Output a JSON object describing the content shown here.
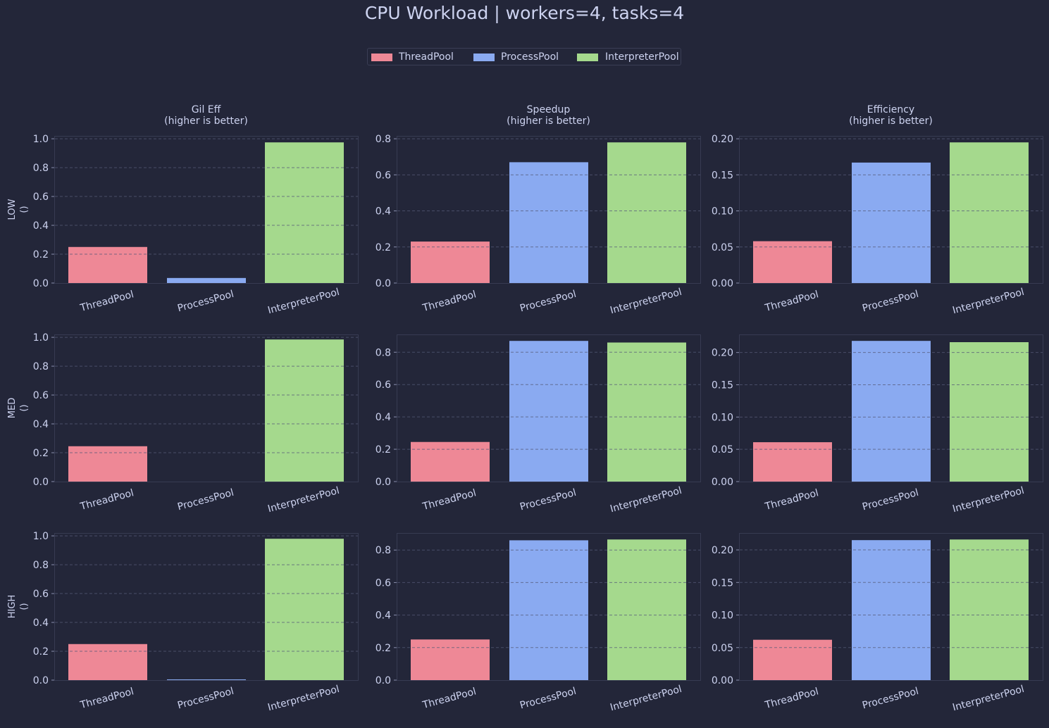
{
  "chart_data": {
    "type": "bar",
    "title": "CPU Workload | workers=4, tasks=4",
    "legend": {
      "placement": "top-center",
      "entries": [
        "ThreadPool",
        "ProcessPool",
        "InterpreterPool"
      ]
    },
    "categories": [
      "ThreadPool",
      "ProcessPool",
      "InterpreterPool"
    ],
    "colors": {
      "ThreadPool": "#ee8896",
      "ProcessPool": "#8aaaf1",
      "InterpreterPool": "#a5d98d",
      "background": "#232639",
      "text": "#cdd3f0",
      "grid": "#555a78"
    },
    "grid": "y-dashed",
    "columns": [
      {
        "title": "Gil Eff",
        "subtitle": "(higher is better)",
        "yticks": [
          "0.0",
          "0.2",
          "0.4",
          "0.6",
          "0.8",
          "1.0"
        ]
      },
      {
        "title": "Speedup",
        "subtitle": "(higher is better)",
        "yticks": [
          "0.0",
          "0.2",
          "0.4",
          "0.6",
          "0.8"
        ]
      },
      {
        "title": "Efficiency",
        "subtitle": "(higher is better)",
        "yticks": [
          "0.00",
          "0.05",
          "0.10",
          "0.15",
          "0.20"
        ]
      }
    ],
    "rows": [
      {
        "label": "LOW",
        "sublabel": "()"
      },
      {
        "label": "MED",
        "sublabel": "()"
      },
      {
        "label": "HIGH",
        "sublabel": "()"
      }
    ],
    "panels": [
      {
        "row": "LOW",
        "metric": "Gil Eff",
        "ylim": [
          0,
          1.02
        ],
        "values": [
          0.25,
          0.035,
          0.975
        ]
      },
      {
        "row": "LOW",
        "metric": "Speedup",
        "ylim": [
          0,
          0.816
        ],
        "values": [
          0.23,
          0.67,
          0.78
        ]
      },
      {
        "row": "LOW",
        "metric": "Efficiency",
        "ylim": [
          0,
          0.204
        ],
        "values": [
          0.058,
          0.167,
          0.195
        ]
      },
      {
        "row": "MED",
        "metric": "Gil Eff",
        "ylim": [
          0,
          1.02
        ],
        "values": [
          0.245,
          0.0,
          0.985
        ]
      },
      {
        "row": "MED",
        "metric": "Speedup",
        "ylim": [
          0,
          0.91
        ],
        "values": [
          0.245,
          0.87,
          0.86
        ]
      },
      {
        "row": "MED",
        "metric": "Efficiency",
        "ylim": [
          0,
          0.228
        ],
        "values": [
          0.061,
          0.218,
          0.216
        ]
      },
      {
        "row": "HIGH",
        "metric": "Gil Eff",
        "ylim": [
          0,
          1.02
        ],
        "values": [
          0.25,
          0.005,
          0.98
        ]
      },
      {
        "row": "HIGH",
        "metric": "Speedup",
        "ylim": [
          0,
          0.905
        ],
        "values": [
          0.25,
          0.86,
          0.865
        ]
      },
      {
        "row": "HIGH",
        "metric": "Efficiency",
        "ylim": [
          0,
          0.226
        ],
        "values": [
          0.062,
          0.215,
          0.216
        ]
      }
    ]
  }
}
